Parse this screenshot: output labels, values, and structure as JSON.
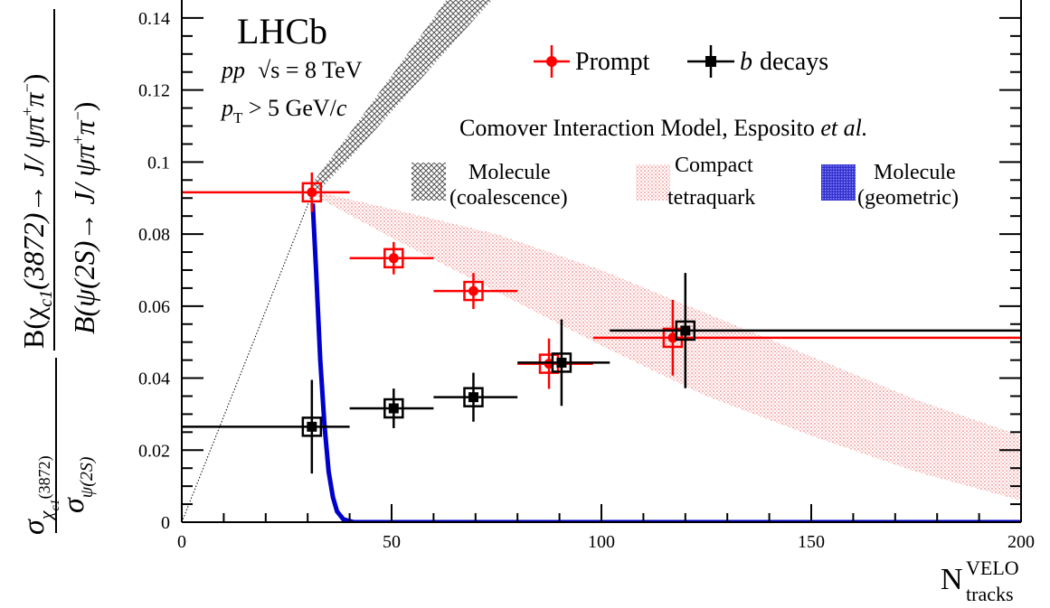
{
  "chart_data": {
    "type": "scatter",
    "xlim": [
      0,
      200
    ],
    "ylim": [
      0,
      0.145
    ],
    "x_ticks": [
      "0",
      "50",
      "100",
      "150",
      "200"
    ],
    "y_ticks": [
      "0",
      "0.02",
      "0.04",
      "0.06",
      "0.08",
      "0.1",
      "0.12",
      "0.14"
    ],
    "x_tick_values": [
      0,
      50,
      100,
      150,
      200
    ],
    "y_tick_values": [
      0,
      0.02,
      0.04,
      0.06,
      0.08,
      0.1,
      0.12,
      0.14
    ],
    "xlabel": {
      "main": "N",
      "sup": "VELO",
      "sub": "tracks"
    },
    "ylabel": {
      "sigma": "σ",
      "sigma_sub_a": "χ",
      "sigma_sub_a2": "c1",
      "sigma_sub_b": "(3872)",
      "sigma_den_sub": "ψ(2S)",
      "br_num": "B(χ",
      "br_num_sub": "c1",
      "br_num_rest": "(3872)→ J/ ψπ",
      "br_num_plus": "+",
      "br_num_pi": "π",
      "br_num_minus": "−",
      "br_num_close": ")",
      "br_den": "B(ψ(2S)→ J/ ψπ",
      "br_den_plus": "+",
      "br_den_pi": "π",
      "br_den_minus": "−",
      "br_den_close": ")"
    },
    "annotations": {
      "experiment": "LHCb",
      "energy_pp": "pp",
      "energy_rest": "√s = 8 TeV",
      "pt_p": "p",
      "pt_sub": "T",
      "pt_rest": " > 5 GeV/",
      "pt_c": "c",
      "model_title": "Comover Interaction Model, Esposito ",
      "model_etal": "et al.",
      "band_coalescence_line1": "Molecule",
      "band_coalescence_line2": "(coalescence)",
      "band_compact_line1": "Compact",
      "band_compact_line2": "tetraquark",
      "band_geometric_line1": "Molecule",
      "band_geometric_line2": "(geometric)"
    },
    "legend_position": "top-right",
    "series": [
      {
        "name": "Prompt",
        "name_prefix": "",
        "name_italic": "",
        "color": "#ff0000",
        "marker": "circle",
        "points": [
          {
            "x": 31,
            "y": 0.0916,
            "xlo": 0,
            "xhi": 40,
            "ystat": 0.0055,
            "ysys": 0.0025
          },
          {
            "x": 50.5,
            "y": 0.0733,
            "xlo": 40,
            "xhi": 60,
            "ystat": 0.0045,
            "ysys": 0.0023
          },
          {
            "x": 69.5,
            "y": 0.0642,
            "xlo": 60,
            "xhi": 80,
            "ystat": 0.005,
            "ysys": 0.0021
          },
          {
            "x": 87.5,
            "y": 0.044,
            "xlo": 80,
            "xhi": 98,
            "ystat": 0.007,
            "ysys": 0.0018
          },
          {
            "x": 117,
            "y": 0.0512,
            "xlo": 98,
            "xhi": 200,
            "ystat": 0.0105,
            "ysys": 0.002
          }
        ]
      },
      {
        "name": "decays",
        "name_prefix": "b",
        "name_italic": "b",
        "color": "#000000",
        "marker": "square",
        "points": [
          {
            "x": 31,
            "y": 0.0265,
            "xlo": 0,
            "xhi": 40,
            "ystat": 0.013,
            "ysys": 0.002
          },
          {
            "x": 50.5,
            "y": 0.0316,
            "xlo": 40,
            "xhi": 60,
            "ystat": 0.0055,
            "ysys": 0.0018
          },
          {
            "x": 69.5,
            "y": 0.0347,
            "xlo": 60,
            "xhi": 80,
            "ystat": 0.0068,
            "ysys": 0.0018
          },
          {
            "x": 90.5,
            "y": 0.0443,
            "xlo": 80,
            "xhi": 102,
            "ystat": 0.012,
            "ysys": 0.0025
          },
          {
            "x": 120,
            "y": 0.0532,
            "xlo": 102,
            "xhi": 200,
            "ystat": 0.016,
            "ysys": 0.0025
          }
        ]
      }
    ],
    "bands": [
      {
        "name": "Molecule (coalescence)",
        "color": "#555555",
        "upper": [
          [
            31,
            0.094
          ],
          [
            40,
            0.108
          ],
          [
            50,
            0.124
          ],
          [
            60,
            0.14
          ],
          [
            66,
            0.15
          ]
        ],
        "lower": [
          [
            31,
            0.09
          ],
          [
            40,
            0.101
          ],
          [
            50,
            0.114
          ],
          [
            60,
            0.127
          ],
          [
            70,
            0.14
          ],
          [
            78,
            0.15
          ]
        ]
      },
      {
        "name": "Compact tetraquark",
        "color": "#f4a0a0",
        "upper": [
          [
            31,
            0.092
          ],
          [
            50,
            0.087
          ],
          [
            75,
            0.08
          ],
          [
            100,
            0.07
          ],
          [
            125,
            0.058
          ],
          [
            150,
            0.046
          ],
          [
            175,
            0.034
          ],
          [
            200,
            0.024
          ]
        ],
        "lower": [
          [
            31,
            0.091
          ],
          [
            50,
            0.079
          ],
          [
            75,
            0.064
          ],
          [
            100,
            0.049
          ],
          [
            125,
            0.035
          ],
          [
            150,
            0.024
          ],
          [
            175,
            0.014
          ],
          [
            200,
            0.006
          ]
        ]
      }
    ],
    "geometric_curve": {
      "name": "Molecule (geometric)",
      "color": "#0000cc",
      "points": [
        [
          31.2,
          0.0885
        ],
        [
          32,
          0.07
        ],
        [
          33,
          0.045
        ],
        [
          34,
          0.027
        ],
        [
          35,
          0.014
        ],
        [
          36,
          0.007
        ],
        [
          37,
          0.003
        ],
        [
          38.5,
          0.0008
        ],
        [
          41,
          0
        ],
        [
          200,
          0
        ]
      ]
    },
    "dotted_line": {
      "points": [
        [
          0,
          0
        ],
        [
          31,
          0.091
        ]
      ]
    }
  }
}
